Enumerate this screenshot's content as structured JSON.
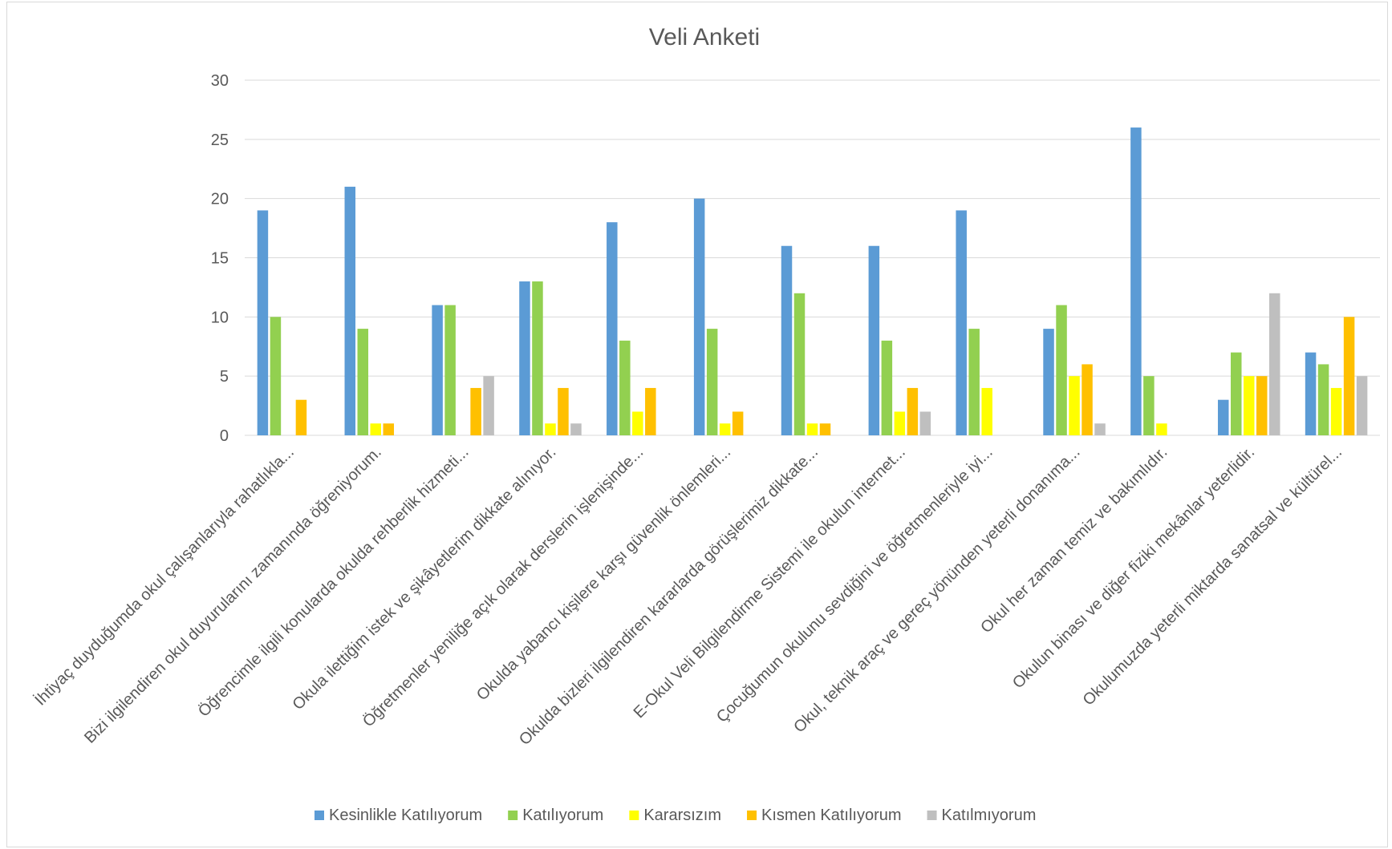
{
  "chart_data": {
    "type": "bar",
    "title": "Veli Anketi",
    "xlabel": "",
    "ylabel": "",
    "ylim": [
      0,
      30
    ],
    "yticks": [
      0,
      5,
      10,
      15,
      20,
      25,
      30
    ],
    "grid": true,
    "legend_position": "bottom",
    "categories": [
      "İhtiyaç duyduğumda okul çalışanlarıyla rahatlıkla...",
      "Bizi ilgilendiren okul duyurularını zamanında öğreniyorum.",
      "Öğrencimle ilgili konularda okulda rehberlik hizmeti...",
      "Okula ilettiğim istek ve şikâyetlerim dikkate alınıyor.",
      "Öğretmenler yeniliğe açık olarak derslerin işlenişinde...",
      "Okulda yabancı kişilere karşı güvenlik önlemleri...",
      "Okulda bizleri ilgilendiren kararlarda görüşlerimiz dikkate...",
      "E-Okul Veli Bilgilendirme Sistemi ile okulun internet...",
      "Çocuğumun okulunu sevdiğini ve öğretmenleriyle iyi...",
      "Okul, teknik araç ve gereç yönünden yeterli donanıma...",
      "Okul her zaman temiz ve bakımlıdır.",
      "Okulun binası ve diğer fiziki mekânlar yeterlidir.",
      "Okulumuzda yeterli miktarda sanatsal ve kültürel..."
    ],
    "series": [
      {
        "name": "Kesinlikle Katılıyorum",
        "color": "#5b9bd5",
        "values": [
          19,
          21,
          11,
          13,
          18,
          20,
          16,
          16,
          19,
          9,
          26,
          3,
          7
        ]
      },
      {
        "name": "Katılıyorum",
        "color": "#92d050",
        "values": [
          10,
          9,
          11,
          13,
          8,
          9,
          12,
          8,
          9,
          11,
          5,
          7,
          6
        ]
      },
      {
        "name": "Kararsızım",
        "color": "#ffff00",
        "values": [
          0,
          1,
          0,
          1,
          2,
          1,
          1,
          2,
          4,
          5,
          1,
          5,
          4
        ]
      },
      {
        "name": "Kısmen Katılıyorum",
        "color": "#ffc000",
        "values": [
          3,
          1,
          4,
          4,
          4,
          2,
          1,
          4,
          0,
          6,
          0,
          5,
          10
        ]
      },
      {
        "name": "Katılmıyorum",
        "color": "#bfbfbf",
        "values": [
          0,
          0,
          5,
          1,
          0,
          0,
          0,
          2,
          0,
          1,
          0,
          12,
          5
        ]
      }
    ]
  }
}
